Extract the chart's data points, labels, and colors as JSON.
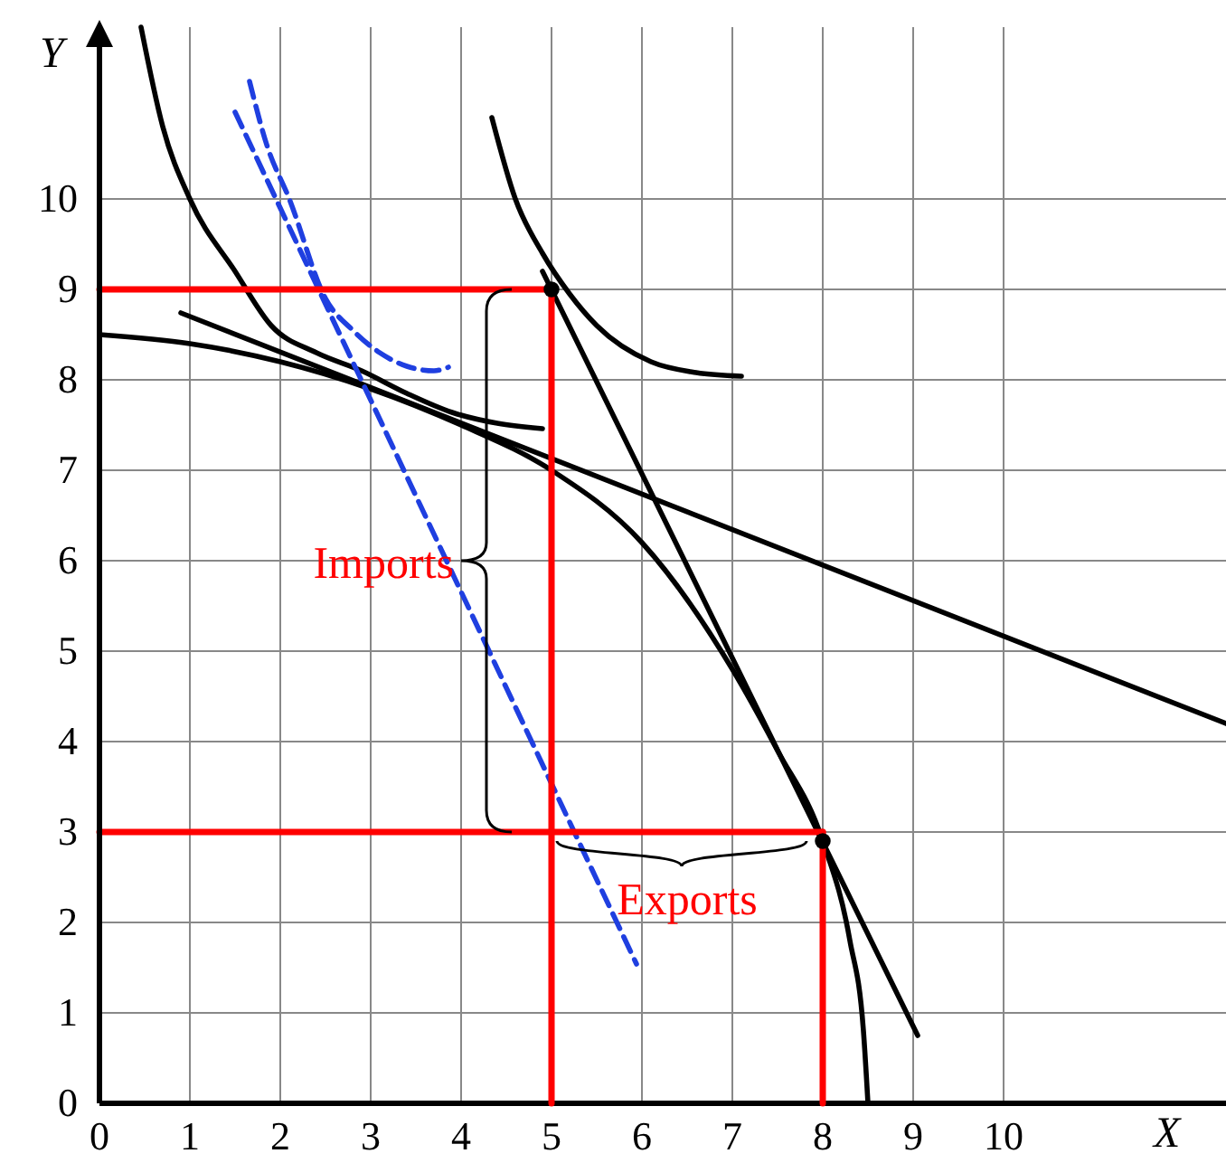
{
  "chart_data": {
    "type": "line",
    "xlabel": "X",
    "ylabel": "Y",
    "xlim": [
      0,
      12.46
    ],
    "ylim": [
      0,
      11.9
    ],
    "xticks": [
      0,
      1,
      2,
      3,
      4,
      5,
      6,
      7,
      8,
      9,
      10
    ],
    "yticks": [
      0,
      1,
      2,
      3,
      4,
      5,
      6,
      7,
      8,
      9,
      10
    ],
    "grid": true,
    "marker": "none",
    "series": [
      {
        "color": "#000000",
        "x": [
          0,
          1,
          2,
          3,
          4,
          5,
          6,
          7,
          7.5,
          8,
          8.3,
          8.45,
          8.5
        ],
        "values": [
          8.5,
          8.4,
          8.2,
          7.9,
          7.5,
          7.0,
          6.2,
          4.8,
          3.9,
          2.9,
          1.8,
          0.8,
          0
        ]
      },
      {
        "color": "#000000",
        "x": [
          0.46,
          0.7,
          1,
          1.5,
          1.9,
          2.4,
          2.9,
          3.4,
          3.9,
          4.4,
          4.9
        ],
        "values": [
          11.9,
          10.8,
          10,
          9.2,
          8.6,
          8.3,
          8.1,
          7.85,
          7.64,
          7.52,
          7.46
        ]
      },
      {
        "color": "#000000",
        "x": [
          0.9,
          12.46
        ],
        "values": [
          8.74,
          4.2
        ]
      },
      {
        "color": "#000000",
        "x": [
          4.9,
          9.05
        ],
        "values": [
          9.2,
          0.75
        ]
      },
      {
        "color": "#000000",
        "x": [
          4.34,
          4.6,
          4.9,
          5.2,
          5.5,
          6.1,
          6.6,
          7.1
        ],
        "values": [
          10.9,
          10,
          9.4,
          8.95,
          8.6,
          8.2,
          8.08,
          8.04
        ]
      },
      {
        "color": "#1f3fe0",
        "line_style": "dashed",
        "x": [
          1.5,
          5.94
        ],
        "values": [
          10.96,
          1.54
        ]
      },
      {
        "color": "#1f3fe0",
        "line_style": "dashed",
        "x": [
          1.66,
          1.85,
          2.1,
          2.5,
          2.8,
          3.1,
          3.4,
          3.7,
          3.86
        ],
        "values": [
          11.3,
          10.6,
          10,
          8.9,
          8.55,
          8.3,
          8.15,
          8.1,
          8.14
        ]
      },
      {
        "color": "#ff0000",
        "x": [
          0,
          5
        ],
        "values": [
          9,
          9
        ]
      },
      {
        "color": "#ff0000",
        "x": [
          5,
          5
        ],
        "values": [
          0,
          9
        ]
      },
      {
        "color": "#ff0000",
        "x": [
          0,
          8
        ],
        "values": [
          3,
          3
        ]
      },
      {
        "color": "#ff0000",
        "x": [
          8,
          8
        ],
        "values": [
          0,
          3
        ]
      },
      {
        "type": "scatter",
        "marker": "circle",
        "color": "#000000",
        "x": [
          5,
          8
        ],
        "values": [
          9,
          2.9
        ]
      }
    ],
    "annotations": [
      "Imports",
      "Exports"
    ]
  }
}
